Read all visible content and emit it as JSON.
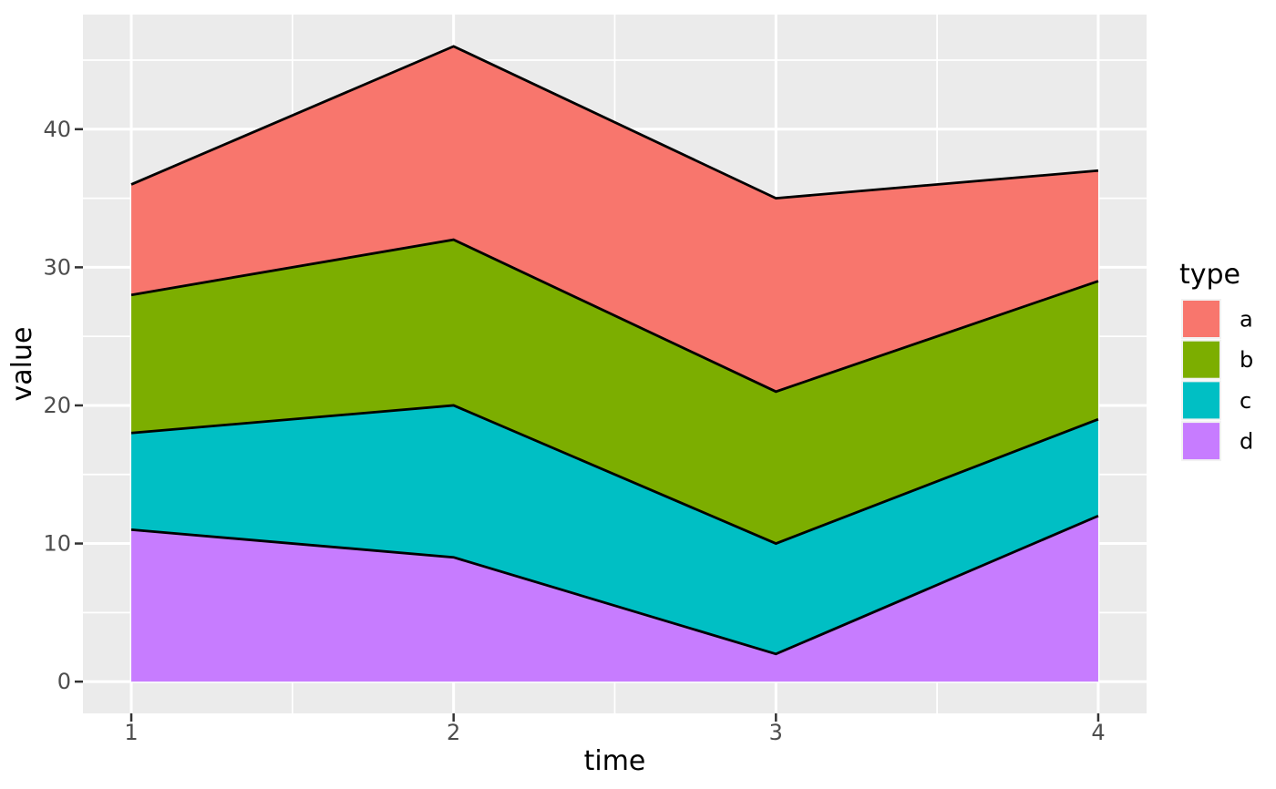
{
  "figure": {
    "background": "#FFFFFF",
    "panel_background": "#EBEBEB",
    "grid_color": "#FFFFFF",
    "axis_tick_color": "#333333",
    "axis_text_color": "#4D4D4D",
    "axis_title_color": "#000000",
    "area_outline_color": "#000000",
    "legend_key_background": "#F2F2F2",
    "legend_text_color": "#000000"
  },
  "chart_data": {
    "type": "area",
    "stacked": true,
    "title": "",
    "xlabel": "time",
    "ylabel": "value",
    "x": [
      1,
      2,
      3,
      4
    ],
    "series": [
      {
        "name": "a",
        "color": "#F8766D",
        "values": [
          8,
          14,
          14,
          8
        ]
      },
      {
        "name": "b",
        "color": "#7CAE00",
        "values": [
          10,
          12,
          11,
          10
        ]
      },
      {
        "name": "c",
        "color": "#00BFC4",
        "values": [
          7,
          11,
          8,
          7
        ]
      },
      {
        "name": "d",
        "color": "#C77CFF",
        "values": [
          11,
          9,
          2,
          12
        ]
      }
    ],
    "stack_order_bottom_to_top": [
      "d",
      "c",
      "b",
      "a"
    ],
    "stacked_totals": [
      36,
      46,
      35,
      37
    ],
    "x_ticks": [
      1,
      2,
      3,
      4
    ],
    "y_ticks": [
      0,
      10,
      20,
      30,
      40
    ],
    "x_minor_ticks": [
      1.5,
      2.5,
      3.5
    ],
    "y_minor_ticks": [
      5,
      15,
      25,
      35,
      45
    ],
    "xlim": [
      0.85,
      4.15
    ],
    "ylim": [
      -2.3,
      48.3
    ],
    "grid": true,
    "legend": {
      "title": "type",
      "position": "right",
      "entries": [
        "a",
        "b",
        "c",
        "d"
      ]
    }
  }
}
